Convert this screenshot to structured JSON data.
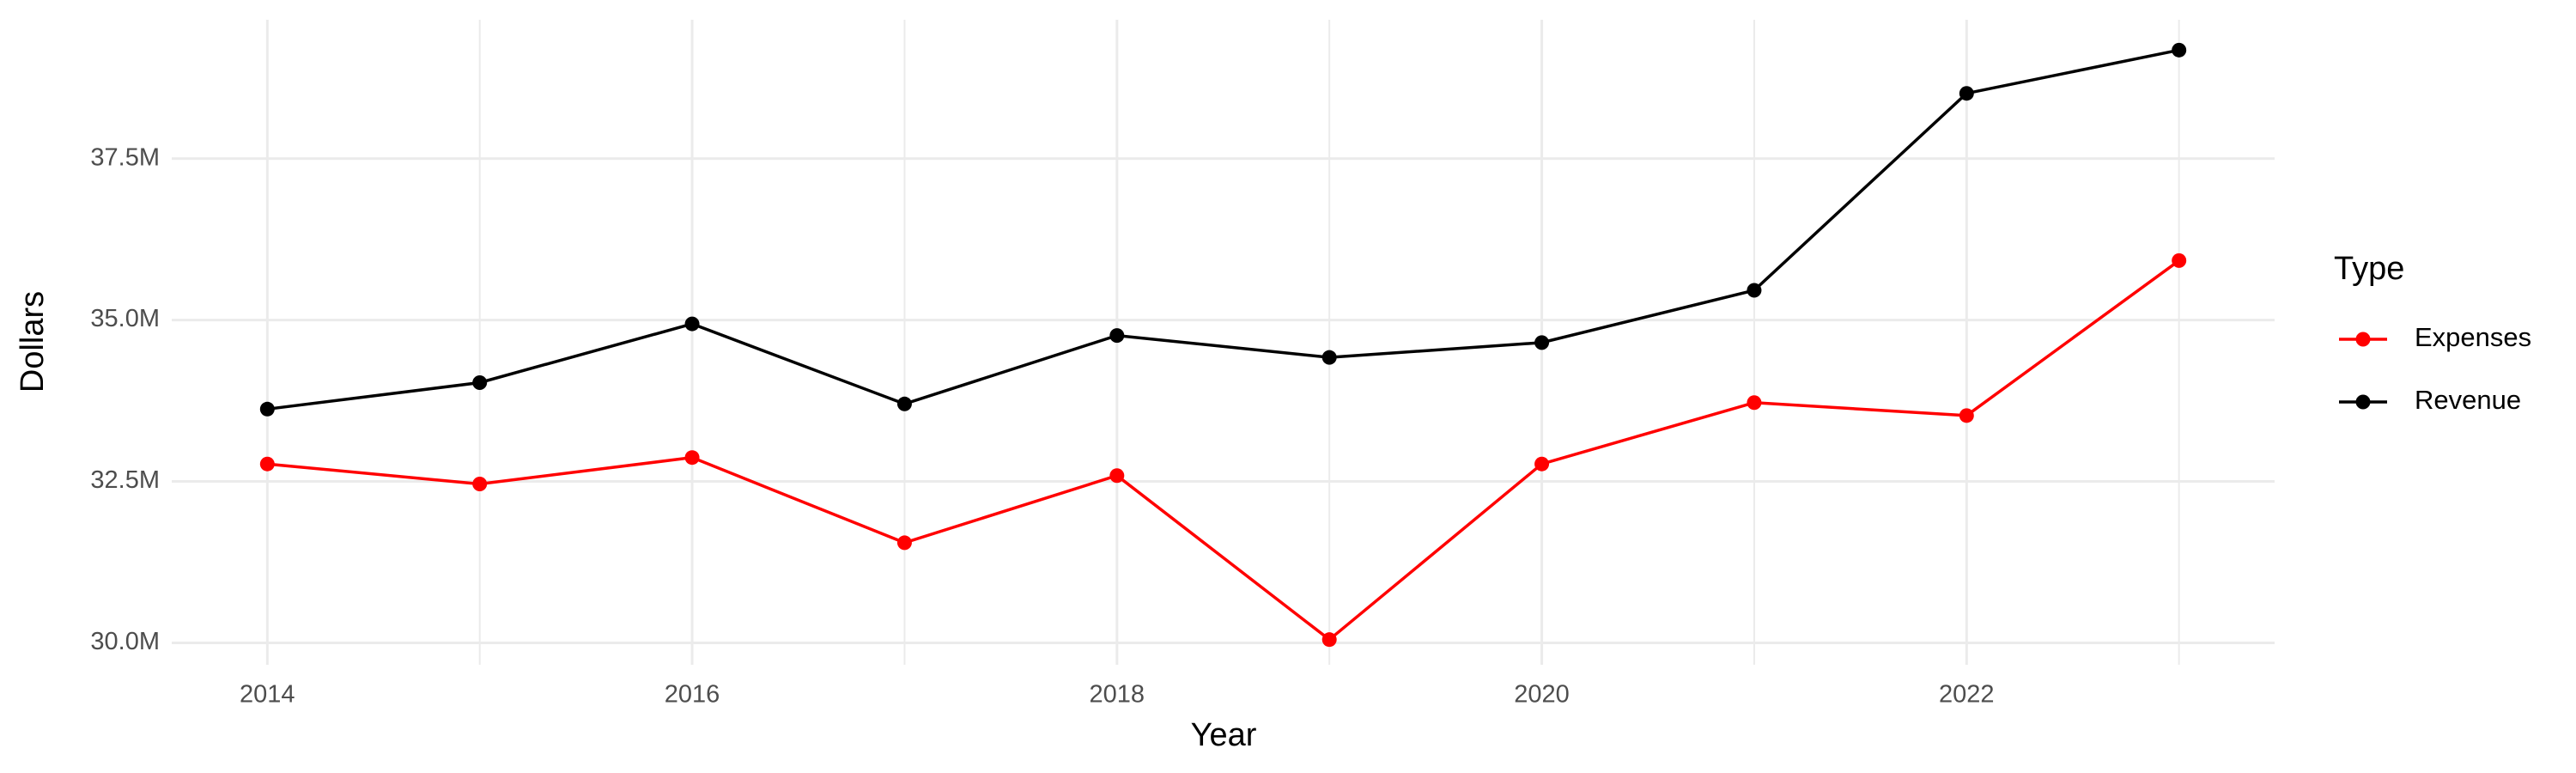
{
  "chart_data": {
    "type": "line",
    "x_label": "Year",
    "y_label": "Dollars",
    "legend_title": "Type",
    "x": [
      2014,
      2015,
      2016,
      2017,
      2018,
      2019,
      2020,
      2021,
      2022,
      2023
    ],
    "series": [
      {
        "name": "Expenses",
        "color": "#ff0000",
        "values": [
          32770000,
          32460000,
          32870000,
          31550000,
          32590000,
          30050000,
          32770000,
          33720000,
          33520000,
          35920000
        ]
      },
      {
        "name": "Revenue",
        "color": "#000000",
        "values": [
          33620000,
          34030000,
          34940000,
          33700000,
          34760000,
          34420000,
          34650000,
          35460000,
          38510000,
          39180000
        ]
      }
    ],
    "xlim": [
      2013.55,
      2023.45
    ],
    "xticks": [
      2014,
      2016,
      2018,
      2020,
      2022
    ],
    "ylim": [
      29660000,
      39650000
    ],
    "yticks": [
      {
        "value": 30000000,
        "label": "30.0M"
      },
      {
        "value": 32500000,
        "label": "32.5M"
      },
      {
        "value": 35000000,
        "label": "35.0M"
      },
      {
        "value": 37500000,
        "label": "37.5M"
      }
    ],
    "grid": true,
    "legend": "right"
  }
}
